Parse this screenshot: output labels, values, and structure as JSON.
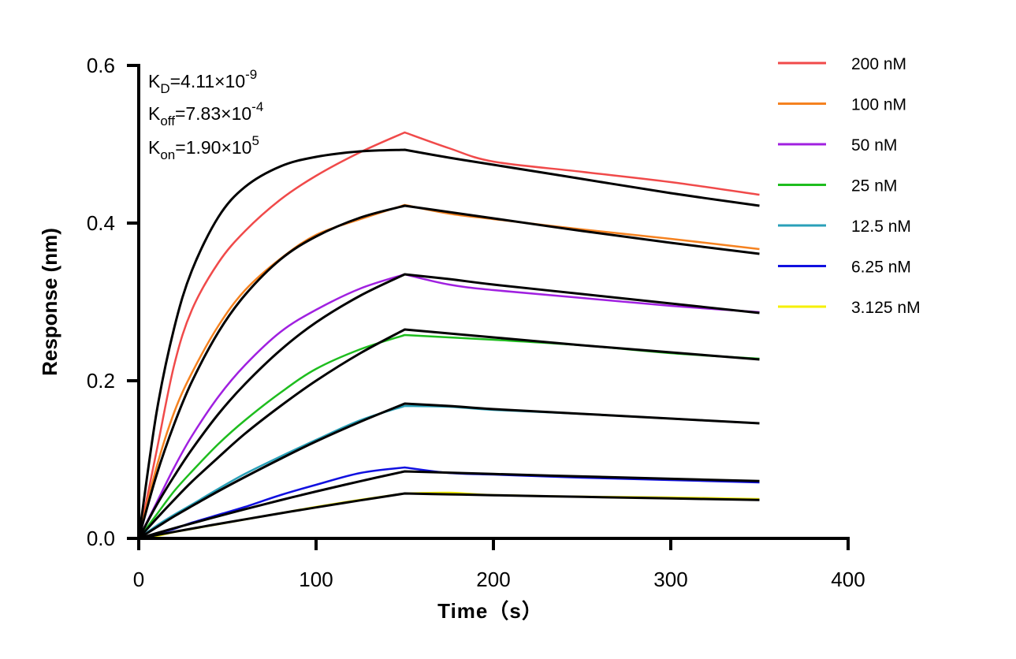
{
  "chart_data": {
    "type": "line",
    "title": "",
    "xlabel": "Time（s）",
    "ylabel": "Response (nm)",
    "xlim": [
      0,
      400
    ],
    "ylim": [
      0,
      0.6
    ],
    "xticks": [
      "0",
      "100",
      "200",
      "300",
      "400"
    ],
    "yticks": [
      "0.0",
      "0.2",
      "0.4",
      "0.6"
    ],
    "grid": false,
    "legend_position": "right",
    "annotations": [
      {
        "base": "K",
        "sub": "D",
        "text": "=4.11×10",
        "exp": "-9"
      },
      {
        "base": "K",
        "sub": "off",
        "text": "=7.83×10",
        "exp": "-4"
      },
      {
        "base": "K",
        "sub": "on",
        "text": "=1.90×10",
        "exp": "5"
      }
    ],
    "x": [
      0,
      10,
      20,
      30,
      45,
      60,
      80,
      100,
      125,
      150,
      175,
      200,
      250,
      300,
      350
    ],
    "fit_color": "#000000",
    "series": [
      {
        "name": "200 nM",
        "color": "#f04a4a",
        "values": [
          0,
          0.11,
          0.22,
          0.29,
          0.35,
          0.39,
          0.43,
          0.46,
          0.49,
          0.515,
          0.495,
          0.478,
          0.465,
          0.452,
          0.436
        ],
        "fit": [
          0,
          0.159,
          0.267,
          0.34,
          0.408,
          0.446,
          0.472,
          0.484,
          0.491,
          0.493,
          0.483,
          0.474,
          0.456,
          0.438,
          0.422
        ]
      },
      {
        "name": "100 nM",
        "color": "#f58220",
        "values": [
          0,
          0.09,
          0.16,
          0.21,
          0.27,
          0.315,
          0.355,
          0.385,
          0.405,
          0.423,
          0.412,
          0.405,
          0.392,
          0.38,
          0.367
        ],
        "fit": [
          0,
          0.08,
          0.145,
          0.199,
          0.262,
          0.309,
          0.354,
          0.383,
          0.407,
          0.422,
          0.414,
          0.406,
          0.39,
          0.375,
          0.361
        ]
      },
      {
        "name": "50 nM",
        "color": "#a020e0",
        "values": [
          0,
          0.045,
          0.09,
          0.13,
          0.18,
          0.22,
          0.262,
          0.29,
          0.317,
          0.335,
          0.322,
          0.315,
          0.305,
          0.295,
          0.287
        ],
        "fit": [
          0,
          0.042,
          0.079,
          0.113,
          0.158,
          0.196,
          0.239,
          0.274,
          0.308,
          0.335,
          0.329,
          0.322,
          0.31,
          0.298,
          0.286
        ]
      },
      {
        "name": "25 nM",
        "color": "#1ebd1e",
        "values": [
          0,
          0.03,
          0.06,
          0.085,
          0.12,
          0.15,
          0.185,
          0.215,
          0.24,
          0.258,
          0.255,
          0.252,
          0.245,
          0.235,
          0.228
        ],
        "fit": [
          0,
          0.025,
          0.049,
          0.072,
          0.103,
          0.133,
          0.168,
          0.2,
          0.235,
          0.265,
          0.26,
          0.255,
          0.245,
          0.236,
          0.227
        ]
      },
      {
        "name": "12.5 nM",
        "color": "#2aa0b8",
        "values": [
          0,
          0.016,
          0.03,
          0.043,
          0.063,
          0.082,
          0.104,
          0.125,
          0.15,
          0.168,
          0.167,
          0.163,
          0.158,
          0.152,
          0.146
        ],
        "fit": [
          0,
          0.014,
          0.028,
          0.041,
          0.06,
          0.078,
          0.101,
          0.123,
          0.148,
          0.171,
          0.168,
          0.164,
          0.158,
          0.152,
          0.146
        ]
      },
      {
        "name": "6.25 nM",
        "color": "#1010e0",
        "values": [
          0,
          0.006,
          0.012,
          0.02,
          0.03,
          0.04,
          0.055,
          0.068,
          0.083,
          0.09,
          0.083,
          0.081,
          0.077,
          0.074,
          0.071
        ],
        "fit": [
          0,
          0.0065,
          0.0129,
          0.0191,
          0.0282,
          0.0371,
          0.0485,
          0.0595,
          0.0726,
          0.085,
          0.0834,
          0.0817,
          0.0786,
          0.0756,
          0.0727
        ]
      },
      {
        "name": "3.125 nM",
        "color": "#f5f000",
        "values": [
          0,
          0.003,
          0.008,
          0.012,
          0.018,
          0.024,
          0.032,
          0.04,
          0.049,
          0.057,
          0.058,
          0.055,
          0.053,
          0.052,
          0.05
        ],
        "fit": [
          0,
          0.0042,
          0.0083,
          0.0124,
          0.0184,
          0.0242,
          0.0319,
          0.0393,
          0.0483,
          0.057,
          0.0559,
          0.0548,
          0.0527,
          0.0507,
          0.0487
        ]
      }
    ]
  }
}
